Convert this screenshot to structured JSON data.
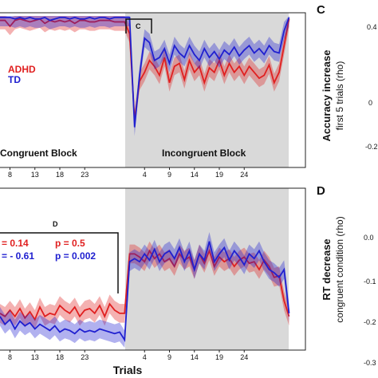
{
  "chart_data": [
    {
      "type": "line",
      "xlabel": "",
      "ylabel": "",
      "x_ticks": [
        "8",
        "13",
        "18",
        "23",
        "4",
        "9",
        "14",
        "19",
        "24"
      ],
      "legend": [
        {
          "name": "ADHD",
          "color": "#e02020"
        },
        {
          "name": "TD",
          "color": "#2020d0"
        }
      ],
      "block_labels": {
        "congruent": "Congruent Block",
        "incongruent": "Incongruent Block"
      },
      "bracket_label": "C",
      "series": [
        {
          "name": "ADHD",
          "color": "#e02020",
          "values": [
            0.97,
            0.97,
            0.93,
            0.97,
            0.98,
            0.97,
            0.96,
            0.97,
            0.98,
            0.95,
            0.97,
            0.96,
            0.97,
            0.96,
            0.97,
            0.95,
            0.97,
            0.97,
            0.96,
            0.96,
            0.97,
            0.97,
            0.97,
            0.96,
            0.96,
            0.96,
            0.88,
            0.3,
            0.56,
            0.62,
            0.7,
            0.66,
            0.6,
            0.72,
            0.55,
            0.66,
            0.68,
            0.57,
            0.7,
            0.62,
            0.66,
            0.55,
            0.65,
            0.62,
            0.7,
            0.6,
            0.68,
            0.62,
            0.66,
            0.6,
            0.66,
            0.62,
            0.58,
            0.6,
            0.67,
            0.55,
            0.62,
            0.8,
            0.98
          ]
        },
        {
          "name": "TD",
          "color": "#2020d0",
          "values": [
            0.99,
            0.99,
            0.99,
            0.98,
            0.99,
            0.98,
            0.99,
            0.98,
            0.98,
            0.99,
            0.97,
            0.98,
            0.99,
            0.99,
            0.98,
            0.99,
            0.98,
            0.98,
            0.99,
            0.98,
            0.99,
            0.99,
            0.98,
            0.99,
            0.99,
            0.99,
            0.99,
            0.25,
            0.6,
            0.85,
            0.82,
            0.7,
            0.72,
            0.78,
            0.68,
            0.8,
            0.75,
            0.72,
            0.8,
            0.74,
            0.7,
            0.78,
            0.72,
            0.76,
            0.71,
            0.77,
            0.74,
            0.79,
            0.73,
            0.77,
            0.8,
            0.75,
            0.78,
            0.74,
            0.8,
            0.76,
            0.75,
            0.9,
            0.99
          ]
        }
      ]
    },
    {
      "type": "line",
      "xlabel": "Trials",
      "ylabel": "",
      "x_ticks": [
        "8",
        "13",
        "18",
        "23",
        "4",
        "9",
        "14",
        "19",
        "24"
      ],
      "bracket_label": "D",
      "stats": [
        {
          "series": "ADHD",
          "r": "= 0.14",
          "p": "p = 0.5",
          "color": "#e02020"
        },
        {
          "series": "TD",
          "r": "= - 0.61",
          "p": "p = 0.002",
          "color": "#2020d0"
        }
      ],
      "series": [
        {
          "name": "ADHD",
          "color": "#e02020",
          "values": [
            0.22,
            0.2,
            0.24,
            0.2,
            0.25,
            0.19,
            0.23,
            0.18,
            0.26,
            0.2,
            0.22,
            0.21,
            0.27,
            0.24,
            0.22,
            0.26,
            0.2,
            0.24,
            0.25,
            0.22,
            0.27,
            0.2,
            0.28,
            0.24,
            0.22,
            0.22,
            0.6,
            0.6,
            0.58,
            0.55,
            0.62,
            0.57,
            0.6,
            0.55,
            0.57,
            0.52,
            0.6,
            0.56,
            0.58,
            0.5,
            0.6,
            0.54,
            0.62,
            0.52,
            0.58,
            0.55,
            0.57,
            0.52,
            0.56,
            0.58,
            0.54,
            0.55,
            0.5,
            0.56,
            0.52,
            0.45,
            0.46,
            0.3,
            0.2
          ]
        },
        {
          "name": "TD",
          "color": "#2020d0",
          "values": [
            0.2,
            0.15,
            0.18,
            0.12,
            0.17,
            0.14,
            0.16,
            0.12,
            0.15,
            0.13,
            0.11,
            0.14,
            0.1,
            0.12,
            0.11,
            0.09,
            0.12,
            0.1,
            0.11,
            0.1,
            0.12,
            0.11,
            0.1,
            0.09,
            0.1,
            0.05,
            0.55,
            0.57,
            0.55,
            0.6,
            0.56,
            0.63,
            0.55,
            0.6,
            0.62,
            0.57,
            0.64,
            0.55,
            0.62,
            0.5,
            0.6,
            0.56,
            0.68,
            0.55,
            0.6,
            0.64,
            0.56,
            0.62,
            0.58,
            0.53,
            0.6,
            0.57,
            0.62,
            0.55,
            0.5,
            0.48,
            0.45,
            0.5,
            0.22
          ]
        }
      ]
    },
    {
      "type": "scatter",
      "panel_letter": "C",
      "ylabel_line1": "Accuracy increase",
      "ylabel_line2": "first 5 trials (rho)",
      "y_ticks": [
        "0.4",
        "0",
        "-0.2"
      ]
    },
    {
      "type": "scatter",
      "panel_letter": "D",
      "ylabel_line1": "RT decrease",
      "ylabel_line2": "congruent condition (rho)",
      "y_ticks": [
        "0.0",
        "-0.1",
        "-0.2",
        "-0.3"
      ]
    }
  ]
}
